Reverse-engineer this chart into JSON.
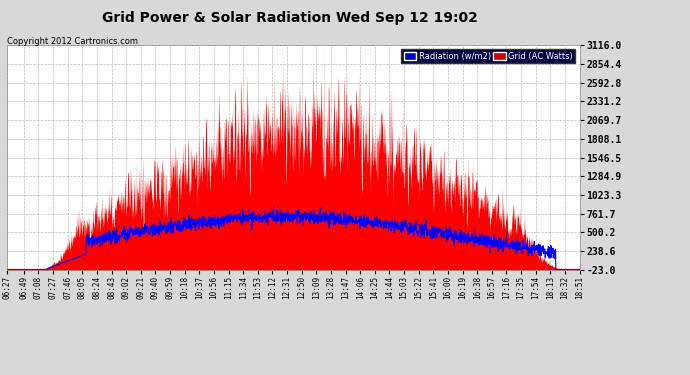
{
  "title": "Grid Power & Solar Radiation Wed Sep 12 19:02",
  "copyright": "Copyright 2012 Cartronics.com",
  "fig_bg": "#d8d8d8",
  "plot_bg": "#ffffff",
  "ytick_values": [
    3116.0,
    2854.4,
    2592.8,
    2331.2,
    2069.7,
    1808.1,
    1546.5,
    1284.9,
    1023.3,
    761.7,
    500.2,
    238.6,
    -23.0
  ],
  "ymin": -23.0,
  "ymax": 3116.0,
  "radiation_fill_color": "#ff0000",
  "grid_line_color": "#0000ff",
  "legend_rad_bg": "#0000cc",
  "legend_grid_bg": "#cc0000",
  "grid_line_color_plot": "#888888",
  "xtick_labels": [
    "06:27",
    "06:49",
    "07:08",
    "07:27",
    "07:46",
    "08:05",
    "08:24",
    "08:43",
    "09:02",
    "09:21",
    "09:40",
    "09:59",
    "10:18",
    "10:37",
    "10:56",
    "11:15",
    "11:34",
    "11:53",
    "12:12",
    "12:31",
    "12:50",
    "13:09",
    "13:28",
    "13:47",
    "14:06",
    "14:25",
    "14:44",
    "15:03",
    "15:22",
    "15:41",
    "16:00",
    "16:19",
    "16:38",
    "16:57",
    "17:16",
    "17:35",
    "17:54",
    "18:13",
    "18:32",
    "18:51"
  ]
}
